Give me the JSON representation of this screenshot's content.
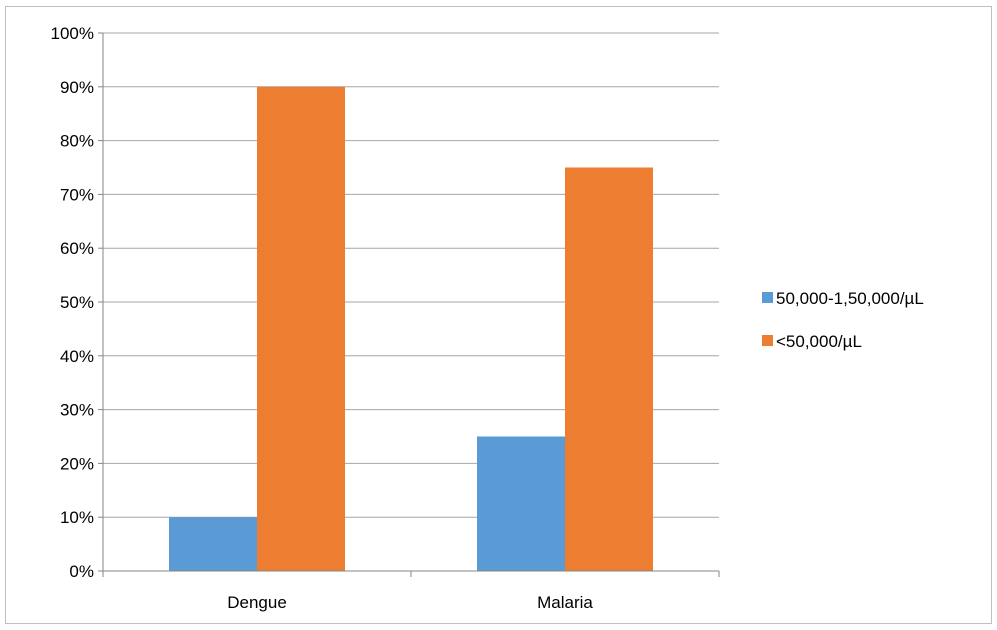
{
  "chart_data": {
    "type": "bar",
    "categories": [
      "Dengue",
      "Malaria"
    ],
    "series": [
      {
        "name": "50,000-1,50,000/µL",
        "values": [
          10,
          25
        ],
        "color": "#5b9bd5"
      },
      {
        "name": "<50,000/µL",
        "values": [
          90,
          75
        ],
        "color": "#ed7d31"
      }
    ],
    "ylim": [
      0,
      100
    ],
    "yticks": [
      "0%",
      "10%",
      "20%",
      "30%",
      "40%",
      "50%",
      "60%",
      "70%",
      "80%",
      "90%",
      "100%"
    ],
    "grid": true,
    "legend_position": "right",
    "title": "",
    "xlabel": "",
    "ylabel": ""
  }
}
